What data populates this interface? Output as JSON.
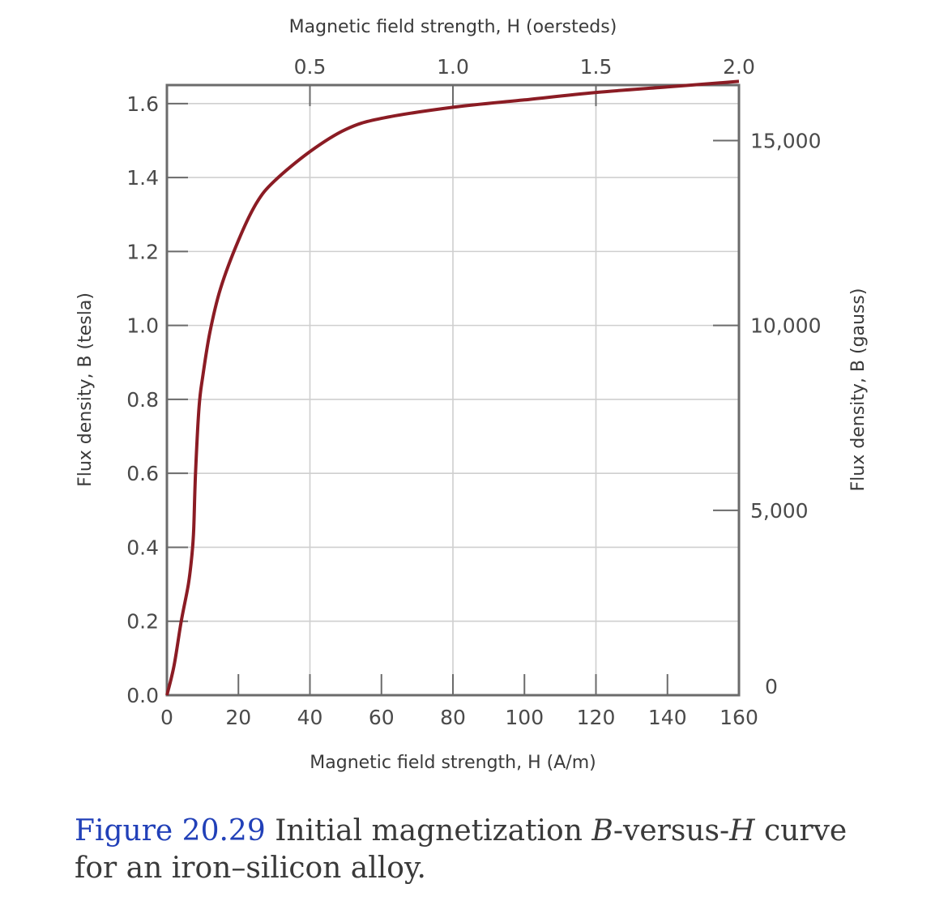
{
  "chart_data": {
    "type": "line",
    "x_bottom": {
      "label": "Magnetic field strength, H (A/m)",
      "range": [
        0,
        160
      ],
      "ticks": [
        "0",
        "20",
        "40",
        "60",
        "80",
        "100",
        "120",
        "140",
        "160"
      ]
    },
    "x_top": {
      "label": "Magnetic field strength, H (oersteds)",
      "range": [
        0,
        2.0
      ],
      "ticks": [
        "0.5",
        "1.0",
        "1.5",
        "2.0"
      ]
    },
    "y_left": {
      "label": "Flux density, B (tesla)",
      "range": [
        0,
        1.65
      ],
      "ticks": [
        "0.0",
        "0.2",
        "0.4",
        "0.6",
        "0.8",
        "1.0",
        "1.2",
        "1.4",
        "1.6"
      ]
    },
    "y_right": {
      "label": "Flux density, B (gauss)",
      "ticks": [
        "0",
        "5,000",
        "10,000",
        "15,000"
      ]
    },
    "grid": true,
    "series": [
      {
        "color": "#8b1c24",
        "x": [
          0,
          2,
          4,
          6,
          7,
          7.5,
          8,
          9,
          10,
          12,
          15,
          20,
          25,
          30,
          40,
          50,
          60,
          80,
          100,
          120,
          140,
          160
        ],
        "y": [
          0,
          0.08,
          0.2,
          0.3,
          0.38,
          0.45,
          0.6,
          0.78,
          0.86,
          0.98,
          1.1,
          1.23,
          1.33,
          1.39,
          1.47,
          1.53,
          1.56,
          1.59,
          1.61,
          1.63,
          1.645,
          1.66
        ]
      }
    ]
  },
  "caption": {
    "figure_number": "Figure 20.29",
    "text_before_b": "Initial magnetization ",
    "b_symbol": "B",
    "text_versus": "-versus-",
    "h_symbol": "H",
    "text_after": " curve for an iron–silicon alloy."
  }
}
